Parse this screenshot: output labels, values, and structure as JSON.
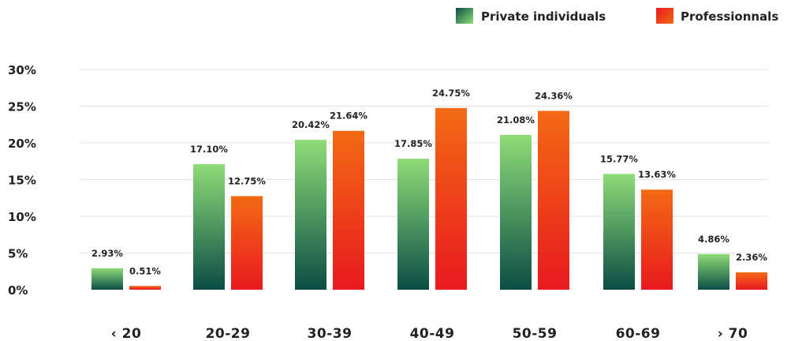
{
  "chart_data": {
    "type": "bar",
    "categories": [
      "‹ 20",
      "20-29",
      "30-39",
      "40-49",
      "50-59",
      "60-69",
      "› 70"
    ],
    "series": [
      {
        "name": "Private individuals",
        "values": [
          2.93,
          17.1,
          20.42,
          17.85,
          21.08,
          15.77,
          4.86
        ],
        "labels": [
          "2.93%",
          "17.10%",
          "20.42%",
          "17.85%",
          "21.08%",
          "15.77%",
          "4.86%"
        ],
        "color_top": "#8fdc78",
        "color_bottom": "#0b4d45"
      },
      {
        "name": "Professionnals",
        "values": [
          0.51,
          12.75,
          21.64,
          24.75,
          24.36,
          13.63,
          2.36
        ],
        "labels": [
          "0.51%",
          "12.75%",
          "21.64%",
          "24.75%",
          "24.36%",
          "13.63%",
          "2.36%"
        ],
        "color_top": "#f36a14",
        "color_bottom": "#e8191f"
      }
    ],
    "yticks": [
      "0%",
      "5%",
      "10%",
      "15%",
      "20%",
      "25%",
      "30%"
    ],
    "ylim": [
      0,
      30
    ],
    "grid": true,
    "legend_position": "top-right",
    "title": "",
    "xlabel": "",
    "ylabel": ""
  }
}
